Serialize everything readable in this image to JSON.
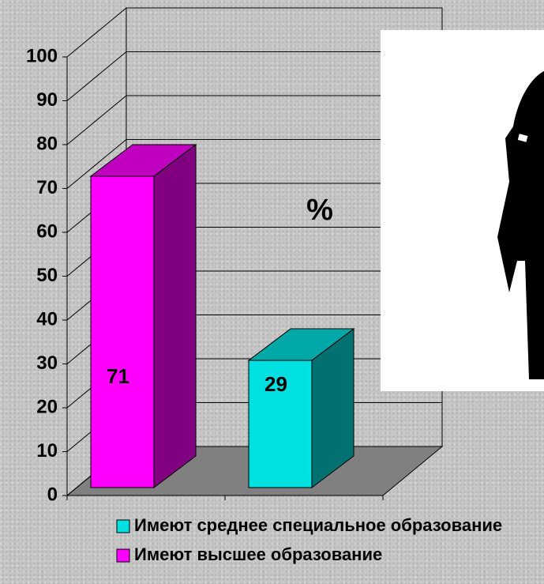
{
  "chart_data": {
    "type": "bar3d",
    "annotation": "%",
    "categories": [
      null,
      null
    ],
    "series": [
      {
        "name": "Имеют среднее специальное образование",
        "color": "#00e0e0",
        "values": [
          null,
          29
        ]
      },
      {
        "name": "Имеют высшее образование",
        "color": "#ff00ff",
        "values": [
          71,
          null
        ]
      }
    ],
    "ylim": [
      0,
      100
    ],
    "yticks": [
      0,
      10,
      20,
      30,
      40,
      50,
      60,
      70,
      80,
      90,
      100
    ],
    "grid": true
  }
}
